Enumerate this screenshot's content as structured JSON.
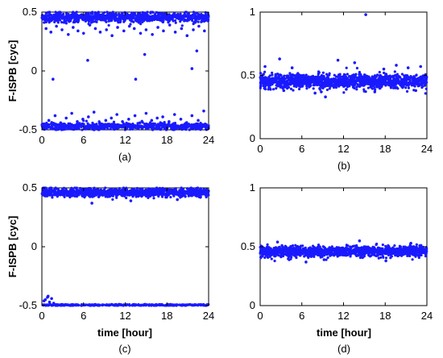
{
  "chart_data": [
    {
      "type": "scatter",
      "caption": "(a)",
      "ylabel": "F-ISPB [cyc]",
      "xlabel": "",
      "xlim": [
        0,
        24
      ],
      "ylim": [
        -0.5,
        0.5
      ],
      "xticks": [
        "0",
        "6",
        "12",
        "18",
        "24"
      ],
      "yticks": [
        "-0.5",
        "0",
        "0.5"
      ],
      "color": "#1a1aff",
      "series": [
        {
          "x": [
            0.6,
            1.3,
            2.1,
            2.9,
            3.8,
            4.5,
            5.2,
            6.0,
            6.9,
            7.7,
            8.4,
            9.3,
            10.1,
            10.9,
            11.8,
            12.6,
            13.3,
            14.2,
            15.0,
            15.9,
            16.7,
            17.5,
            18.4,
            19.2,
            20.1,
            20.9,
            21.8,
            22.6,
            23.4,
            0.3,
            1.0,
            1.9,
            2.7,
            3.5,
            4.3,
            5.1,
            5.9,
            6.7,
            7.5,
            8.3,
            9.2,
            10.0,
            10.8,
            11.6,
            12.5,
            13.4,
            14.1,
            15.0,
            15.8,
            16.6,
            17.4,
            18.3,
            19.1,
            20.0,
            20.8,
            21.6,
            22.5,
            23.3,
            1.6,
            6.6,
            13.5,
            14.8,
            21.6,
            22.3
          ],
          "y": [
            0.36,
            0.33,
            0.38,
            0.35,
            0.31,
            0.37,
            0.34,
            0.32,
            0.39,
            0.36,
            0.33,
            0.35,
            0.3,
            0.37,
            0.34,
            0.38,
            0.36,
            0.32,
            0.35,
            0.31,
            0.37,
            0.34,
            0.39,
            0.33,
            0.36,
            0.3,
            0.35,
            0.38,
            0.34,
            -0.45,
            -0.42,
            -0.38,
            -0.44,
            -0.4,
            -0.36,
            -0.43,
            -0.41,
            -0.39,
            -0.35,
            -0.44,
            -0.42,
            -0.4,
            -0.37,
            -0.43,
            -0.41,
            -0.38,
            -0.44,
            -0.36,
            -0.42,
            -0.4,
            -0.39,
            -0.43,
            -0.37,
            -0.41,
            -0.44,
            -0.38,
            -0.42,
            -0.34,
            -0.07,
            0.09,
            -0.07,
            0.14,
            0.02,
            0.17
          ]
        }
      ],
      "bands": [
        {
          "center": 0.455,
          "spread": 0.04,
          "count": 900
        },
        {
          "center": -0.47,
          "spread": 0.03,
          "count": 700
        }
      ]
    },
    {
      "type": "scatter",
      "caption": "(b)",
      "ylabel": "",
      "xlabel": "",
      "xlim": [
        0,
        24
      ],
      "ylim": [
        0,
        1
      ],
      "xticks": [
        "0",
        "6",
        "12",
        "18",
        "24"
      ],
      "yticks": [
        "0",
        "0.5",
        "1"
      ],
      "color": "#1a1aff",
      "series": [
        {
          "x": [
            0.7,
            2.8,
            4.6,
            7.9,
            9.4,
            11.2,
            13.6,
            15.2,
            17.8,
            19.6,
            21.3,
            23.1,
            3.4,
            8.8,
            12.4,
            16.5,
            22.4
          ],
          "y": [
            0.57,
            0.63,
            0.56,
            0.36,
            0.33,
            0.62,
            0.6,
            0.98,
            0.55,
            0.58,
            0.56,
            0.57,
            0.38,
            0.37,
            0.39,
            0.37,
            0.38
          ]
        }
      ],
      "bands": [
        {
          "center": 0.455,
          "spread": 0.055,
          "count": 1400
        }
      ]
    },
    {
      "type": "scatter",
      "caption": "(c)",
      "ylabel": "F-ISPB [cyc]",
      "xlabel": "time [hour]",
      "xlim": [
        0,
        24
      ],
      "ylim": [
        -0.5,
        0.5
      ],
      "xticks": [
        "0",
        "6",
        "12",
        "18",
        "24"
      ],
      "yticks": [
        "-0.5",
        "0",
        "0.5"
      ],
      "color": "#1a1aff",
      "series": [
        {
          "x": [
            0.5,
            0.8,
            1.1,
            1.4,
            1.7,
            0.3,
            7.2,
            12.8,
            19.5,
            0.9,
            1.2
          ],
          "y": [
            -0.45,
            -0.43,
            -0.47,
            -0.44,
            -0.48,
            -0.46,
            0.37,
            0.39,
            0.4,
            -0.42,
            -0.49
          ]
        }
      ],
      "bands": [
        {
          "center": 0.46,
          "spread": 0.035,
          "count": 1200
        },
        {
          "center": -0.495,
          "spread": 0.006,
          "count": 400
        }
      ]
    },
    {
      "type": "scatter",
      "caption": "(d)",
      "ylabel": "",
      "xlabel": "time [hour]",
      "xlim": [
        0,
        24
      ],
      "ylim": [
        0,
        1
      ],
      "xticks": [
        "0",
        "6",
        "12",
        "18",
        "24"
      ],
      "yticks": [
        "0",
        "0.5",
        "1"
      ],
      "color": "#1a1aff",
      "series": [
        {
          "x": [
            6.6,
            9.2,
            14.3,
            18.1,
            2.5,
            21.7
          ],
          "y": [
            0.37,
            0.39,
            0.55,
            0.38,
            0.54,
            0.53
          ]
        }
      ],
      "bands": [
        {
          "center": 0.46,
          "spread": 0.045,
          "count": 1400
        }
      ]
    }
  ]
}
